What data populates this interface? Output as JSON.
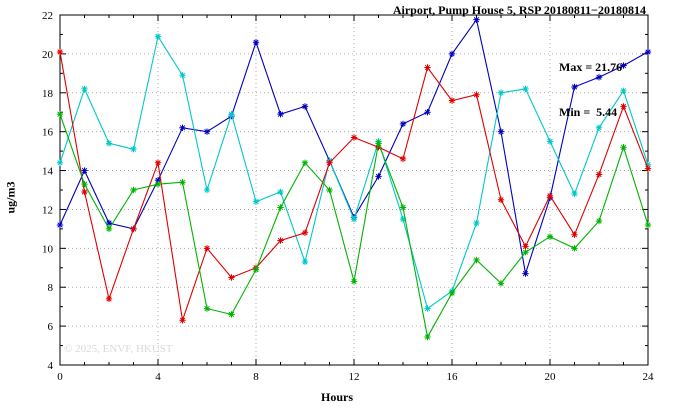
{
  "title": "Airport, Pump House 5, RSP 20180811−20180814",
  "stats": {
    "max_label": "Max = 21.76",
    "min_label": "Min =  5.44"
  },
  "watermark": "© 2025, ENVF, HKUST",
  "chart_data": {
    "type": "line",
    "title": "Airport, Pump House 5, RSP 20180811−20180814",
    "xlabel": "Hours",
    "ylabel": "ug/m3",
    "xlim": [
      0,
      24
    ],
    "ylim": [
      4,
      22
    ],
    "xticks": [
      0,
      4,
      8,
      12,
      16,
      20,
      24
    ],
    "yticks": [
      4,
      6,
      8,
      10,
      12,
      14,
      16,
      18,
      20,
      22
    ],
    "grid": true,
    "legend_position": "none",
    "annotations": {
      "max": 21.76,
      "min": 5.44
    },
    "marker": "asterisk",
    "x": [
      0,
      1,
      2,
      3,
      4,
      5,
      6,
      7,
      8,
      9,
      10,
      11,
      12,
      13,
      14,
      15,
      16,
      17,
      18,
      19,
      20,
      21,
      22,
      23,
      24
    ],
    "series": [
      {
        "name": "series-blue",
        "color": "#0000c0",
        "values": [
          11.2,
          14.0,
          11.3,
          11.0,
          13.5,
          16.2,
          16.0,
          16.8,
          20.6,
          16.9,
          17.3,
          14.5,
          11.6,
          13.7,
          16.4,
          17.0,
          20.0,
          21.76,
          16.0,
          8.7,
          12.6,
          18.3,
          18.8,
          19.4,
          20.1
        ]
      },
      {
        "name": "series-cyan",
        "color": "#00c8c8",
        "values": [
          14.4,
          18.2,
          15.4,
          15.1,
          20.9,
          18.9,
          13.0,
          16.9,
          12.4,
          12.9,
          9.3,
          14.5,
          11.5,
          15.5,
          11.5,
          6.9,
          7.8,
          11.3,
          18.0,
          18.2,
          15.5,
          12.8,
          16.2,
          18.1,
          14.3
        ]
      },
      {
        "name": "series-red",
        "color": "#e00000",
        "values": [
          20.1,
          12.9,
          7.4,
          11.0,
          14.4,
          6.3,
          10.0,
          8.5,
          9.0,
          10.4,
          10.8,
          14.4,
          15.7,
          15.2,
          14.6,
          19.3,
          17.6,
          17.9,
          12.5,
          10.1,
          12.7,
          10.7,
          13.8,
          17.3,
          14.1
        ]
      },
      {
        "name": "series-green",
        "color": "#00b400",
        "values": [
          16.9,
          13.3,
          11.0,
          13.0,
          13.3,
          13.4,
          6.9,
          6.6,
          8.9,
          12.1,
          14.4,
          13.0,
          8.3,
          15.4,
          12.1,
          5.44,
          7.7,
          9.4,
          8.2,
          9.8,
          10.6,
          10.0,
          11.4,
          15.2,
          11.2
        ]
      }
    ]
  }
}
